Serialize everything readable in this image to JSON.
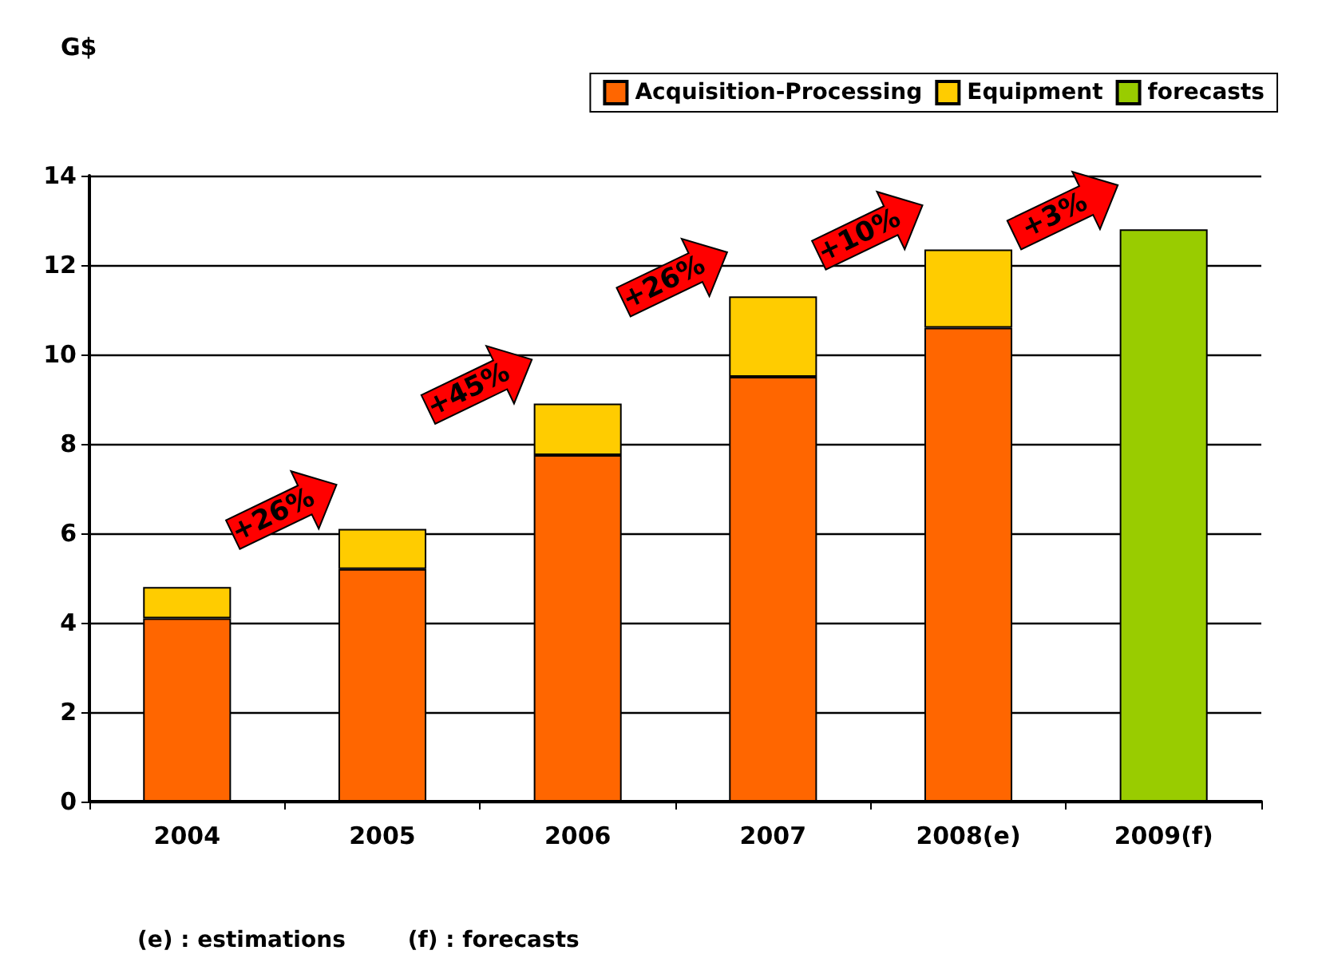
{
  "chart_data": {
    "type": "bar",
    "ylabel": "G$",
    "categories": [
      "2004",
      "2005",
      "2006",
      "2007",
      "2008(e)",
      "2009(f)"
    ],
    "series": [
      {
        "name": "Acquisition-Processing",
        "color": "#ff6600",
        "values": [
          4.1,
          5.2,
          7.75,
          9.5,
          10.6,
          null
        ]
      },
      {
        "name": "Equipment",
        "color": "#ffcc00",
        "values": [
          0.7,
          0.9,
          1.15,
          1.8,
          1.75,
          null
        ]
      },
      {
        "name": "forecasts",
        "color": "#99cc00",
        "values": [
          null,
          null,
          null,
          null,
          null,
          12.8
        ]
      }
    ],
    "stacked": true,
    "ylim": [
      0,
      14
    ],
    "yticks": [
      0,
      2,
      4,
      6,
      8,
      10,
      12,
      14
    ],
    "grid": "y",
    "legend": "top right",
    "annotations": [
      "+26%",
      "+45%",
      "+26%",
      "+10%",
      "+3%",
      "(e) : estimations        (f) : forecasts"
    ]
  }
}
